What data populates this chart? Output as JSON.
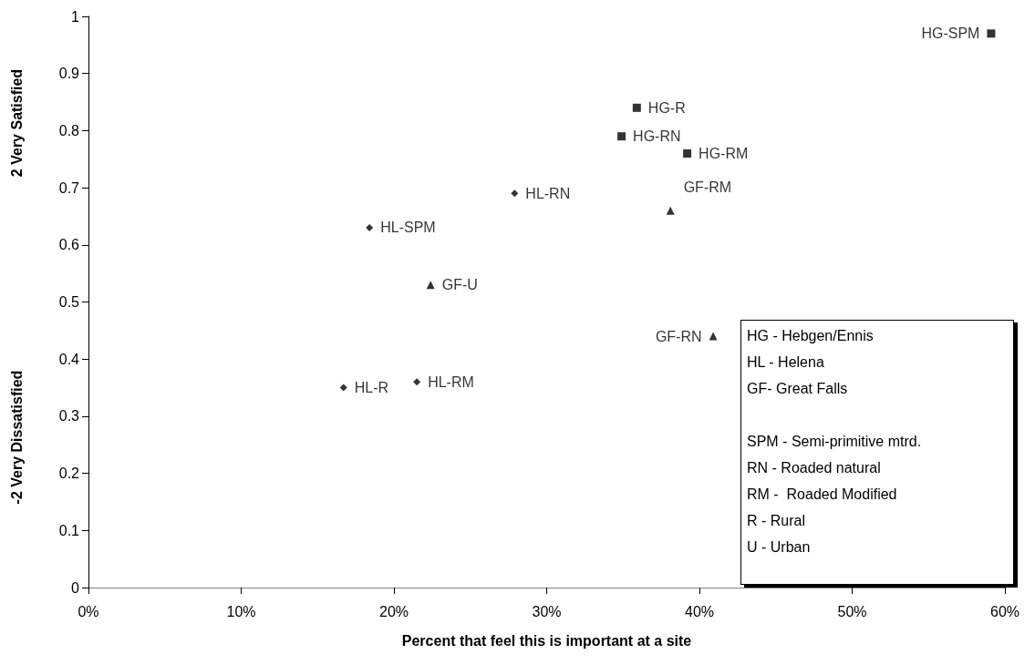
{
  "chart_data": {
    "type": "scatter",
    "xlabel": "Percent that feel this is important at a site",
    "ylabel": "2 Very Satisfied",
    "xlim": [
      0,
      0.6
    ],
    "xticks": [
      {
        "value": 0,
        "label": "0%"
      },
      {
        "value": 0.1,
        "label": "10%"
      },
      {
        "value": 0.2,
        "label": "20%"
      },
      {
        "value": 0.3,
        "label": "30%"
      },
      {
        "value": 0.4,
        "label": "40%"
      },
      {
        "value": 0.5,
        "label": "50%"
      },
      {
        "value": 0.6,
        "label": "60%"
      }
    ],
    "ylim": [
      0,
      1
    ],
    "yticks": [
      0,
      0.1,
      0.2,
      0.3,
      0.4,
      0.5,
      0.6,
      0.7,
      0.8,
      0.9,
      1
    ],
    "grid": false,
    "series": [
      {
        "color": "#000000",
        "marker": "square",
        "x": [
          0.591,
          0.359,
          0.349,
          0.392
        ],
        "values": [
          0.97,
          0.84,
          0.79,
          0.76
        ]
      },
      {
        "color": "#000000",
        "marker": "diamond",
        "x": [
          0.279,
          0.184,
          0.167,
          0.215
        ],
        "values": [
          0.69,
          0.63,
          0.35,
          0.36
        ]
      },
      {
        "color": "#000000",
        "marker": "triangle",
        "x": [
          0.381,
          0.224,
          0.409
        ],
        "values": [
          0.66,
          0.53,
          0.44
        ]
      }
    ],
    "annotations": [
      {
        "text": "HG-SPM",
        "x": 0.591,
        "y": 0.97
      },
      {
        "text": "HG-R",
        "x": 0.359,
        "y": 0.84
      },
      {
        "text": "HG-RN",
        "x": 0.349,
        "y": 0.79
      },
      {
        "text": "HG-RM",
        "x": 0.392,
        "y": 0.76
      },
      {
        "text": "HL-RN",
        "x": 0.279,
        "y": 0.69
      },
      {
        "text": "HL-SPM",
        "x": 0.184,
        "y": 0.63
      },
      {
        "text": "HL-R",
        "x": 0.167,
        "y": 0.35
      },
      {
        "text": "HL-RM",
        "x": 0.215,
        "y": 0.36
      },
      {
        "text": "GF-RM",
        "x": 0.381,
        "y": 0.66
      },
      {
        "text": "GF-U",
        "x": 0.224,
        "y": 0.53
      },
      {
        "text": "GF-RN",
        "x": 0.409,
        "y": 0.44
      },
      "-2 Very Dissatisfied",
      "HG - Hebgen/Ennis\nHL - Helena\nGF- Great Falls\n\nSPM - Semi-primitive mtrd.\nRN - Roaded natural\nRM -  Roaded Modified\nR - Rural\nU - Urban"
    ]
  }
}
